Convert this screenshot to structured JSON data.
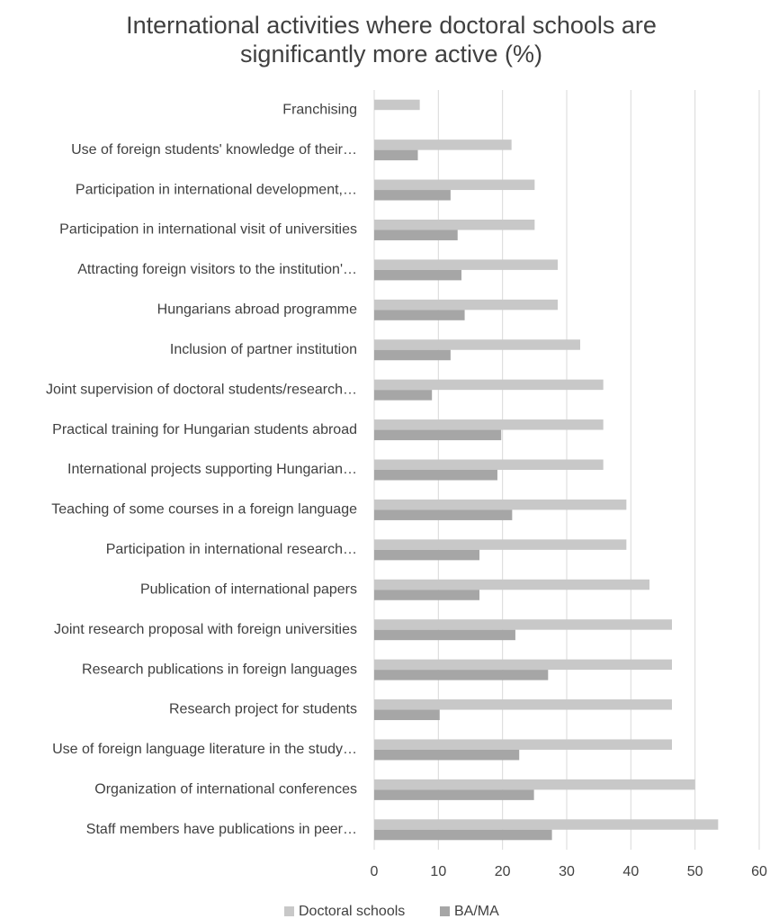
{
  "chart_data": {
    "type": "bar",
    "orientation": "horizontal",
    "title_lines": [
      "International activities where doctoral schools are",
      "significantly more active (%)"
    ],
    "categories": [
      "Franchising",
      "Use of foreign students' knowledge of their…",
      "Participation in international development,…",
      "Participation in international visit of universities",
      "Attracting foreign visitors to the institution'…",
      "Hungarians abroad programme",
      "Inclusion of partner institution",
      "Joint supervision of doctoral students/research…",
      "Practical training for Hungarian students abroad",
      "International projects supporting Hungarian…",
      "Teaching of some courses in a foreign language",
      "Participation in international research…",
      "Publication of international papers",
      "Joint research proposal with foreign universities",
      "Research publications in foreign languages",
      "Research project for students",
      "Use of foreign language literature in the study…",
      "Organization of international conferences",
      "Staff members have publications in peer…"
    ],
    "series": [
      {
        "name": "Doctoral schools",
        "color": "#c8c8c8",
        "values": [
          7.1,
          21.4,
          25.0,
          25.0,
          28.6,
          28.6,
          32.1,
          35.7,
          35.7,
          35.7,
          39.3,
          39.3,
          42.9,
          46.4,
          46.4,
          46.4,
          46.4,
          50.0,
          53.6
        ]
      },
      {
        "name": "BA/MA",
        "color": "#a6a6a6",
        "values": [
          null,
          6.8,
          11.9,
          13.0,
          13.6,
          14.1,
          11.9,
          9.0,
          19.8,
          19.2,
          21.5,
          16.4,
          16.4,
          22.0,
          27.1,
          10.2,
          22.6,
          24.9,
          27.7
        ]
      }
    ],
    "xlim": [
      0,
      60
    ],
    "xticks": [
      0,
      10,
      20,
      30,
      40,
      50,
      60
    ],
    "grid": true,
    "legend_position": "bottom"
  }
}
